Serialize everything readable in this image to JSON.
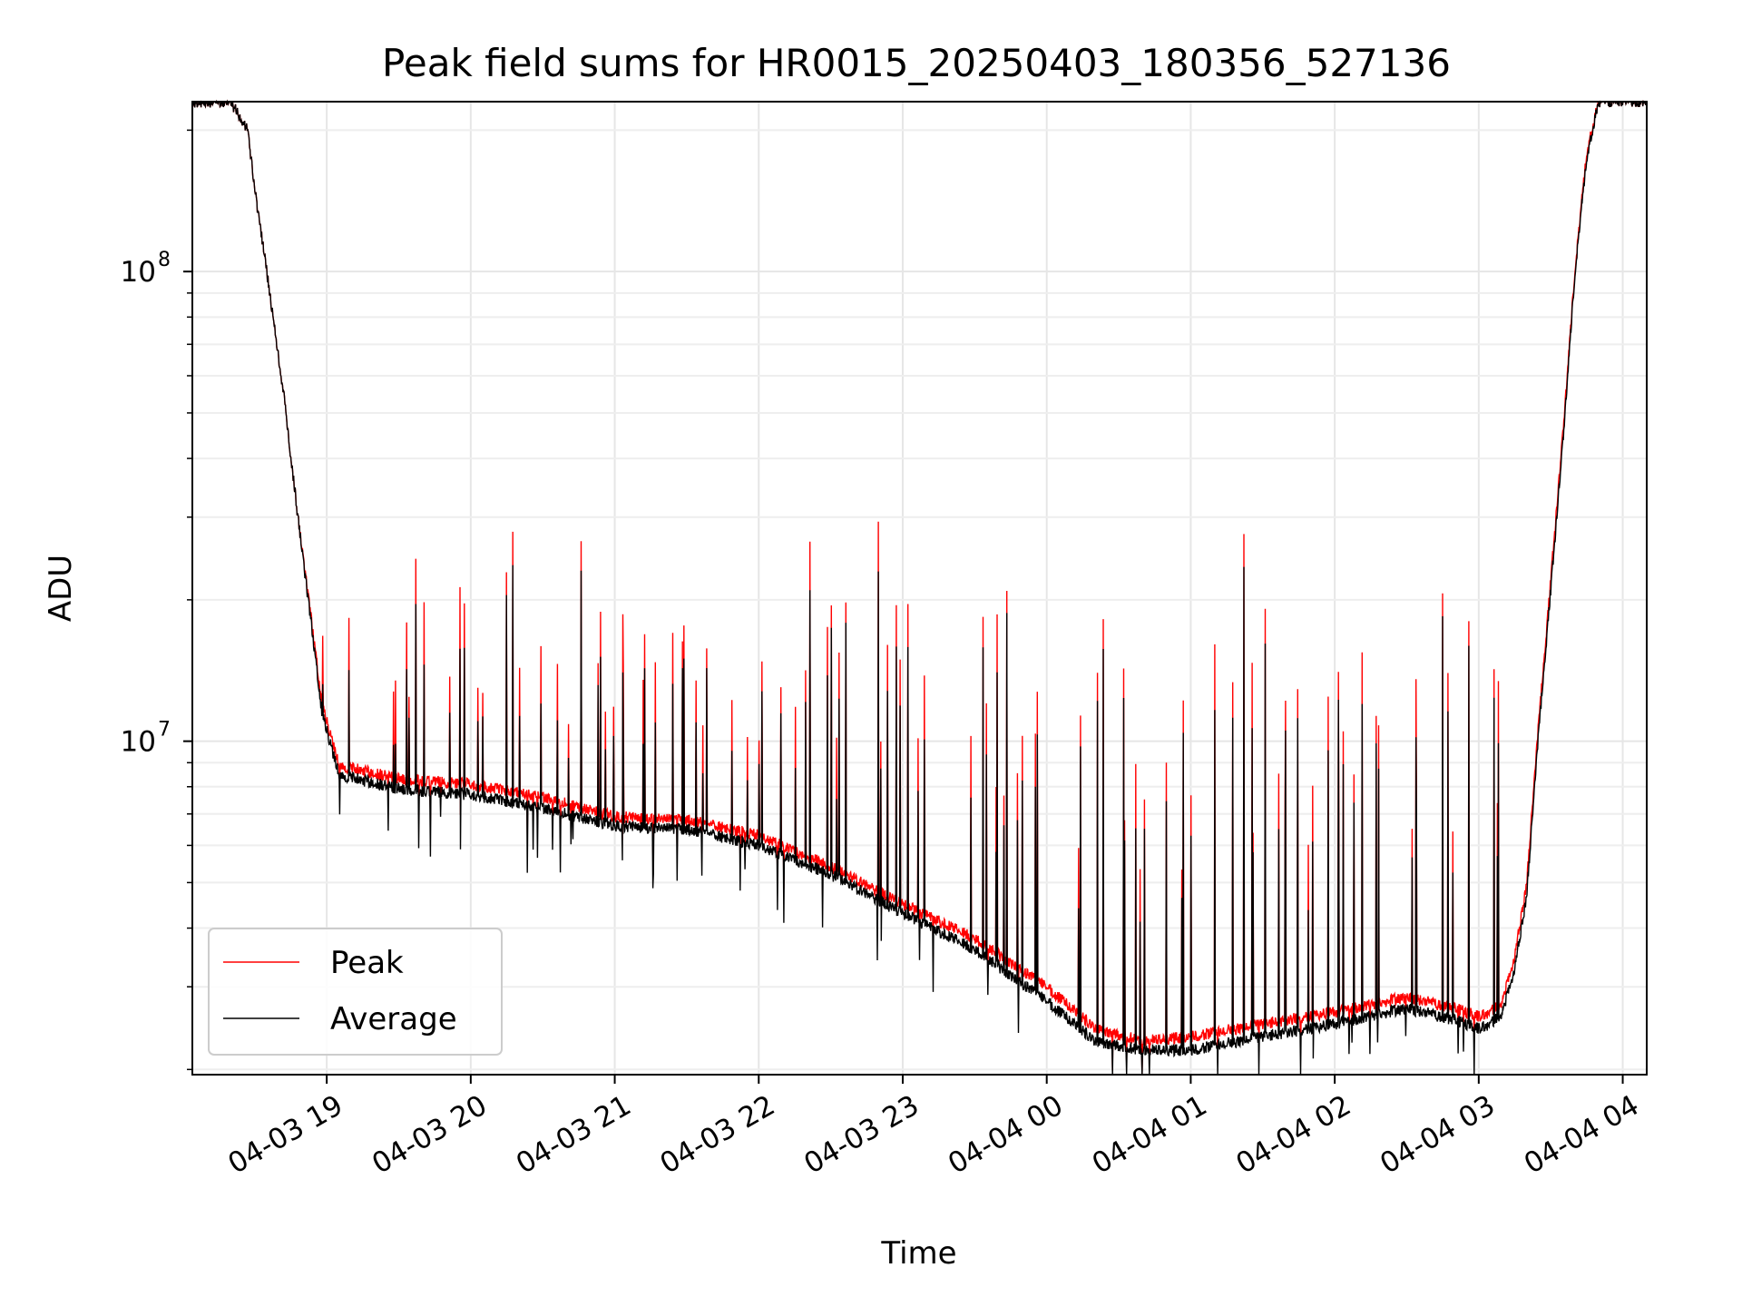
{
  "chart_data": {
    "type": "line",
    "title": "Peak field sums for HR0015_20250403_180356_527136",
    "xlabel": "Time",
    "ylabel": "ADU",
    "yscale": "log",
    "ylim": [
      1950000,
      230000000
    ],
    "xlim": [
      "2025-04-03 18:04",
      "2025-04-04 04:10"
    ],
    "x_ticks": [
      "04-03 19",
      "04-03 20",
      "04-03 21",
      "04-03 22",
      "04-03 23",
      "04-04 00",
      "04-04 01",
      "04-04 02",
      "04-04 03",
      "04-04 04"
    ],
    "y_ticks": [
      {
        "base": "10",
        "exp": "7",
        "value": 10000000
      },
      {
        "base": "10",
        "exp": "8",
        "value": 100000000
      }
    ],
    "grid": true,
    "legend_position": "lower-left",
    "colors": {
      "peak": "#ff0000",
      "average": "#000000"
    },
    "x": [
      "18:04",
      "18:20",
      "18:27",
      "18:30",
      "18:35",
      "18:42",
      "18:48",
      "18:55",
      "18:58",
      "19:05",
      "19:30",
      "20:00",
      "20:30",
      "21:00",
      "21:30",
      "22:00",
      "22:30",
      "23:00",
      "23:30",
      "00:00",
      "00:20",
      "00:40",
      "01:00",
      "01:30",
      "02:00",
      "02:30",
      "02:50",
      "03:00",
      "03:05",
      "03:10",
      "03:15",
      "03:20",
      "03:25",
      "03:30",
      "03:35",
      "03:40",
      "03:45",
      "03:50",
      "04:10"
    ],
    "series": [
      {
        "name": "Peak",
        "values": [
          230000000,
          230000000,
          200000000,
          150000000,
          100000000,
          55000000,
          30000000,
          16000000,
          12000000,
          8900000,
          8300000,
          8100000,
          7600000,
          6900000,
          6800000,
          6300000,
          5400000,
          4500000,
          3800000,
          3000000,
          2450000,
          2300000,
          2350000,
          2500000,
          2650000,
          2850000,
          2700000,
          2600000,
          2650000,
          2800000,
          3500000,
          5000000,
          11000000,
          22000000,
          45000000,
          100000000,
          180000000,
          230000000,
          230000000
        ],
        "spikes_max": [
          29000000,
          26500000,
          22000000,
          22500000,
          21000000,
          19000000,
          22000000,
          21500000,
          18000000,
          21500000,
          32000000
        ]
      },
      {
        "name": "Average",
        "values": [
          230000000,
          230000000,
          200000000,
          150000000,
          100000000,
          55000000,
          30000000,
          15500000,
          11500000,
          8500000,
          7900000,
          7700000,
          7200000,
          6600000,
          6500000,
          6000000,
          5200000,
          4300000,
          3600000,
          2800000,
          2300000,
          2200000,
          2200000,
          2350000,
          2500000,
          2700000,
          2550000,
          2450000,
          2500000,
          2650000,
          3300000,
          4700000,
          10500000,
          21000000,
          43000000,
          98000000,
          175000000,
          230000000,
          230000000
        ]
      }
    ]
  }
}
